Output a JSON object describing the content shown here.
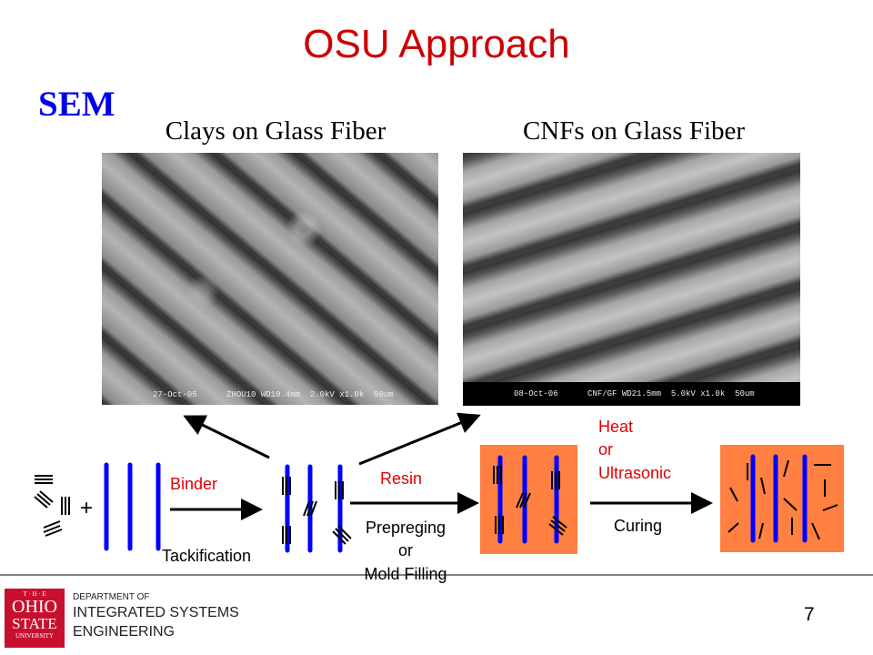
{
  "slide": {
    "title": "OSU Approach",
    "section_label": "SEM",
    "page_number": "7"
  },
  "images": [
    {
      "caption": "Clays on Glass Fiber",
      "sem_info": "27-Oct-05      ZHOU10 WD10.4mm  2.0kV x1.0k  50um"
    },
    {
      "caption": "CNFs on Glass Fiber",
      "sem_info": "08-Oct-06      CNF/GF WD21.5mm  5.0kV x1.0k  50um"
    }
  ],
  "process": {
    "binder": "Binder",
    "tackification": "Tackification",
    "resin": "Resin",
    "prepreging": "Prepreging",
    "or1": "or",
    "mold_filling": "Mold Filling",
    "heat": "Heat",
    "or2": "or",
    "ultrasonic": "Ultrasonic",
    "curing": "Curing",
    "plus": "+"
  },
  "colors": {
    "title": "#cc0000",
    "sem": "#0000ee",
    "fiber": "#0000ff",
    "resin_box": "#ff8040",
    "label_red": "#e00000"
  },
  "footer": {
    "logo_the": "T · H · E",
    "logo_ohio": "OHIO",
    "logo_state": "STATE",
    "logo_university": "UNIVERSITY",
    "dept_line1": "DEPARTMENT OF",
    "dept_line2": "INTEGRATED SYSTEMS",
    "dept_line3": "ENGINEERING"
  }
}
